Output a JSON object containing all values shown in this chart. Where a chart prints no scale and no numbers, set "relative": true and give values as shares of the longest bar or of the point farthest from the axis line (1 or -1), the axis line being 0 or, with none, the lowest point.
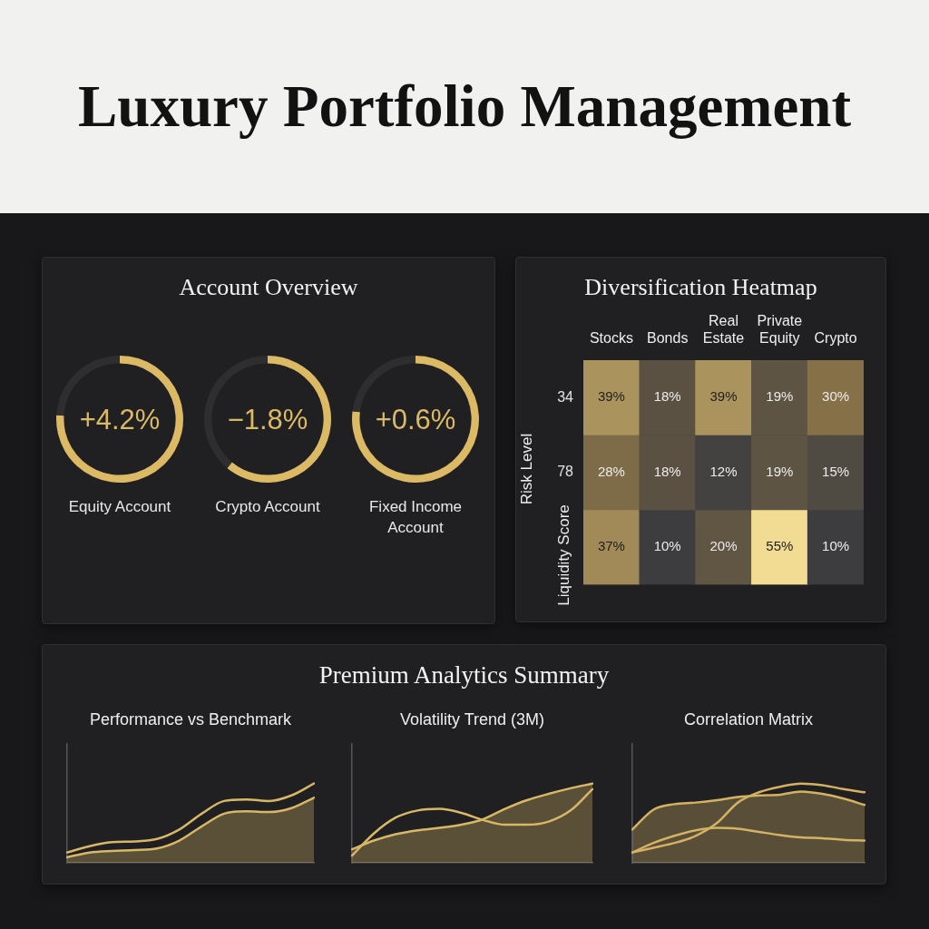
{
  "chart_data": [
    {
      "type": "other",
      "title": "Luxury Portfolio Management"
    },
    {
      "type": "other",
      "title": "Account Overview"
    },
    {
      "type": "donut",
      "title": "Equity Account",
      "annotations": [
        "+4.2%"
      ],
      "categories": [
        null,
        null
      ],
      "values": [
        76,
        24
      ],
      "colors": [
        "#dcb965",
        "#2e2e30"
      ]
    },
    {
      "type": "donut",
      "title": "Crypto Account",
      "annotations": [
        "−1.8%"
      ],
      "categories": [
        null,
        null
      ],
      "values": [
        61,
        39
      ],
      "colors": [
        "#dcb965",
        "#2e2e30"
      ]
    },
    {
      "type": "donut",
      "title": "Fixed Income Account",
      "annotations": [
        "+0.6%"
      ],
      "categories": [
        null,
        null
      ],
      "values": [
        77,
        23
      ],
      "colors": [
        "#dcb965",
        "#2e2e30"
      ]
    },
    {
      "type": "heatmap",
      "title": "Diversification Heatmap",
      "categories": [
        "Stocks",
        "Bonds",
        "Real Estate",
        "Private Equity",
        "Crypto"
      ],
      "y_categories": [
        "34",
        "78",
        null
      ],
      "cells": [
        [
          39,
          18,
          39,
          19,
          30
        ],
        [
          28,
          18,
          12,
          19,
          15
        ],
        [
          37,
          10,
          20,
          55,
          10
        ]
      ],
      "cell_labels": [
        [
          "39%",
          "18%",
          "39%",
          "19%",
          "30%"
        ],
        [
          "28%",
          "18%",
          "12%",
          "19%",
          "15%"
        ],
        [
          "37%",
          "10%",
          "20%",
          "55%",
          "10%"
        ]
      ],
      "annotations": [
        "Risk Level",
        "Liquidity Score"
      ]
    },
    {
      "type": "other",
      "title": "Premium Analytics Summary"
    },
    {
      "type": "area",
      "title": "Performance vs Benchmark",
      "relative": true,
      "categories": [
        null,
        null,
        null,
        null,
        null,
        null,
        null,
        null,
        null,
        null,
        null,
        null
      ],
      "series": [
        {
          "type": "line",
          "color": "#d8b767",
          "values": [
            0.13,
            0.21,
            0.26,
            0.27,
            0.3,
            0.42,
            0.62,
            0.78,
            0.8,
            0.78,
            0.85,
            1
          ]
        },
        {
          "type": "area",
          "color": "#d8b767",
          "values": [
            0.07,
            0.13,
            0.15,
            0.16,
            0.18,
            0.28,
            0.46,
            0.62,
            0.65,
            0.64,
            0.69,
            0.82
          ]
        }
      ]
    },
    {
      "type": "area",
      "title": "Volatility Trend (3M)",
      "relative": true,
      "categories": [
        null,
        null,
        null,
        null,
        null,
        null,
        null,
        null,
        null,
        null,
        null,
        null
      ],
      "series": [
        {
          "type": "line",
          "color": "#d8b767",
          "values": [
            0.09,
            0.37,
            0.57,
            0.66,
            0.68,
            0.63,
            0.54,
            0.48,
            0.48,
            0.52,
            0.66,
            0.93
          ]
        },
        {
          "type": "area",
          "color": "#d8b767",
          "values": [
            0.17,
            0.28,
            0.36,
            0.41,
            0.44,
            0.48,
            0.55,
            0.68,
            0.79,
            0.87,
            0.94,
            1
          ]
        }
      ]
    },
    {
      "type": "area",
      "title": "Correlation Matrix",
      "relative": true,
      "categories": [
        null,
        null,
        null,
        null,
        null,
        null,
        null,
        null,
        null,
        null,
        null,
        null
      ],
      "series": [
        {
          "type": "area",
          "color": "#d4b263",
          "values": [
            0.42,
            0.67,
            0.74,
            0.76,
            0.79,
            0.83,
            0.85,
            0.86,
            0.9,
            0.87,
            0.81,
            0.73
          ]
        },
        {
          "type": "line",
          "color": "#d4b263",
          "values": [
            0.13,
            0.19,
            0.25,
            0.34,
            0.5,
            0.76,
            0.89,
            0.96,
            1,
            0.98,
            0.93,
            0.89
          ]
        },
        {
          "type": "line",
          "color": "#d4b263",
          "values": [
            0.13,
            0.25,
            0.34,
            0.41,
            0.44,
            0.43,
            0.39,
            0.35,
            0.32,
            0.31,
            0.29,
            0.28
          ]
        }
      ]
    }
  ]
}
